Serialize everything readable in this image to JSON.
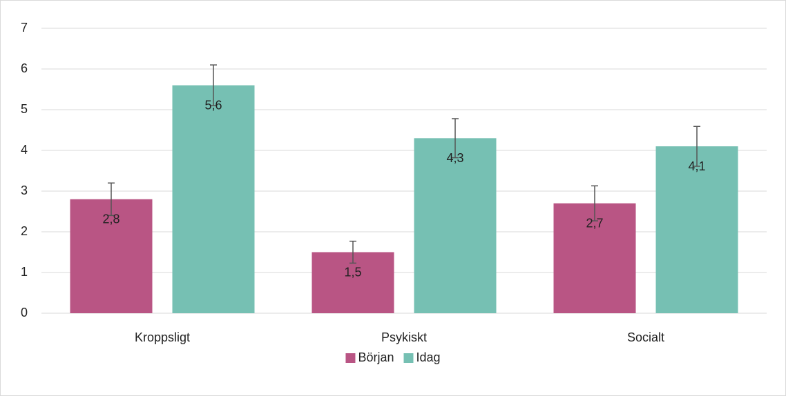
{
  "chart_data": {
    "type": "bar",
    "categories": [
      "Kroppsligt",
      "Psykiskt",
      "Socialt"
    ],
    "series": [
      {
        "name": "Början",
        "color": "#b95584",
        "values": [
          2.8,
          1.5,
          2.7
        ],
        "value_labels": [
          "2,8",
          "1,5",
          "2,7"
        ],
        "errors": [
          0.4,
          0.27,
          0.43
        ]
      },
      {
        "name": "Idag",
        "color": "#76c0b3",
        "values": [
          5.6,
          4.3,
          4.1
        ],
        "value_labels": [
          "5,6",
          "4,3",
          "4,1"
        ],
        "errors": [
          0.5,
          0.48,
          0.49
        ]
      }
    ],
    "ylim": [
      0,
      7
    ],
    "yticks": [
      0,
      1,
      2,
      3,
      4,
      5,
      6,
      7
    ],
    "grid": true,
    "legend": "bottom"
  }
}
